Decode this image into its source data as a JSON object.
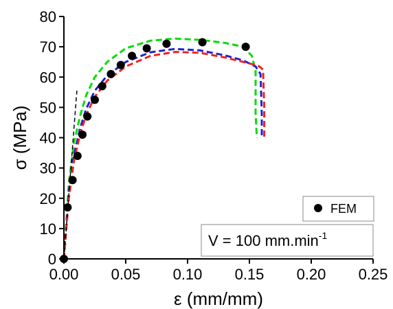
{
  "chart_data": {
    "type": "line",
    "xlabel": "ε (mm/mm)",
    "ylabel": "σ (MPa)",
    "xlim": [
      0,
      0.25
    ],
    "ylim": [
      0,
      80
    ],
    "x_ticks": [
      "0.00",
      "0.05",
      "0.10",
      "0.15",
      "0.20",
      "0.25"
    ],
    "y_ticks": [
      "0",
      "10",
      "20",
      "30",
      "40",
      "50",
      "60",
      "70",
      "80"
    ],
    "grid": false,
    "legend": {
      "placement": "bottom-right",
      "entries": [
        "FEM"
      ]
    },
    "annotation": {
      "prefix": "V = 100 mm.min",
      "superscript": "-1"
    },
    "colors": {
      "green": "#00dd00",
      "blue": "#2222cc",
      "red": "#ee2222",
      "black": "#000000"
    },
    "series": [
      {
        "marker": "dot",
        "color": "#000000",
        "x": [
          0.0,
          0.003,
          0.007,
          0.011,
          0.015,
          0.019,
          0.025,
          0.031,
          0.038,
          0.046,
          0.055,
          0.067,
          0.083,
          0.112,
          0.147
        ],
        "y": [
          0.0,
          17,
          26,
          34,
          41,
          47,
          52.5,
          57,
          61,
          64,
          67,
          69.5,
          71,
          71.5,
          70
        ]
      },
      {
        "style": "dashed",
        "color": "#00dd00",
        "x": [
          0.0,
          0.004,
          0.008,
          0.013,
          0.018,
          0.025,
          0.035,
          0.05,
          0.07,
          0.09,
          0.11,
          0.13,
          0.145,
          0.152,
          0.155,
          0.155,
          0.156
        ],
        "y": [
          0.0,
          25,
          38,
          47,
          54,
          60,
          65,
          69.5,
          72,
          72.7,
          72.3,
          71.3,
          70,
          67,
          62,
          48,
          40
        ]
      },
      {
        "style": "dashed",
        "color": "#2222cc",
        "x": [
          0.0,
          0.004,
          0.008,
          0.013,
          0.018,
          0.025,
          0.035,
          0.05,
          0.07,
          0.09,
          0.11,
          0.13,
          0.145,
          0.155,
          0.159,
          0.16,
          0.16
        ],
        "y": [
          0.0,
          22,
          34,
          43,
          49.5,
          55.5,
          60.5,
          65,
          68.2,
          69.3,
          68.8,
          67.2,
          65.5,
          63.5,
          61,
          48,
          40
        ]
      },
      {
        "style": "dashed",
        "color": "#ee2222",
        "x": [
          0.0,
          0.004,
          0.008,
          0.013,
          0.018,
          0.025,
          0.035,
          0.05,
          0.07,
          0.09,
          0.11,
          0.13,
          0.145,
          0.157,
          0.161,
          0.162,
          0.162
        ],
        "y": [
          0.0,
          20,
          32,
          41,
          47.5,
          53.5,
          58.8,
          63.5,
          67,
          68.3,
          68,
          66.5,
          65,
          63.8,
          62.5,
          50,
          40
        ]
      },
      {
        "style": "dashed",
        "color": "#000000",
        "x": [
          0.0,
          0.0105
        ],
        "y": [
          0.0,
          55.5
        ]
      }
    ]
  }
}
